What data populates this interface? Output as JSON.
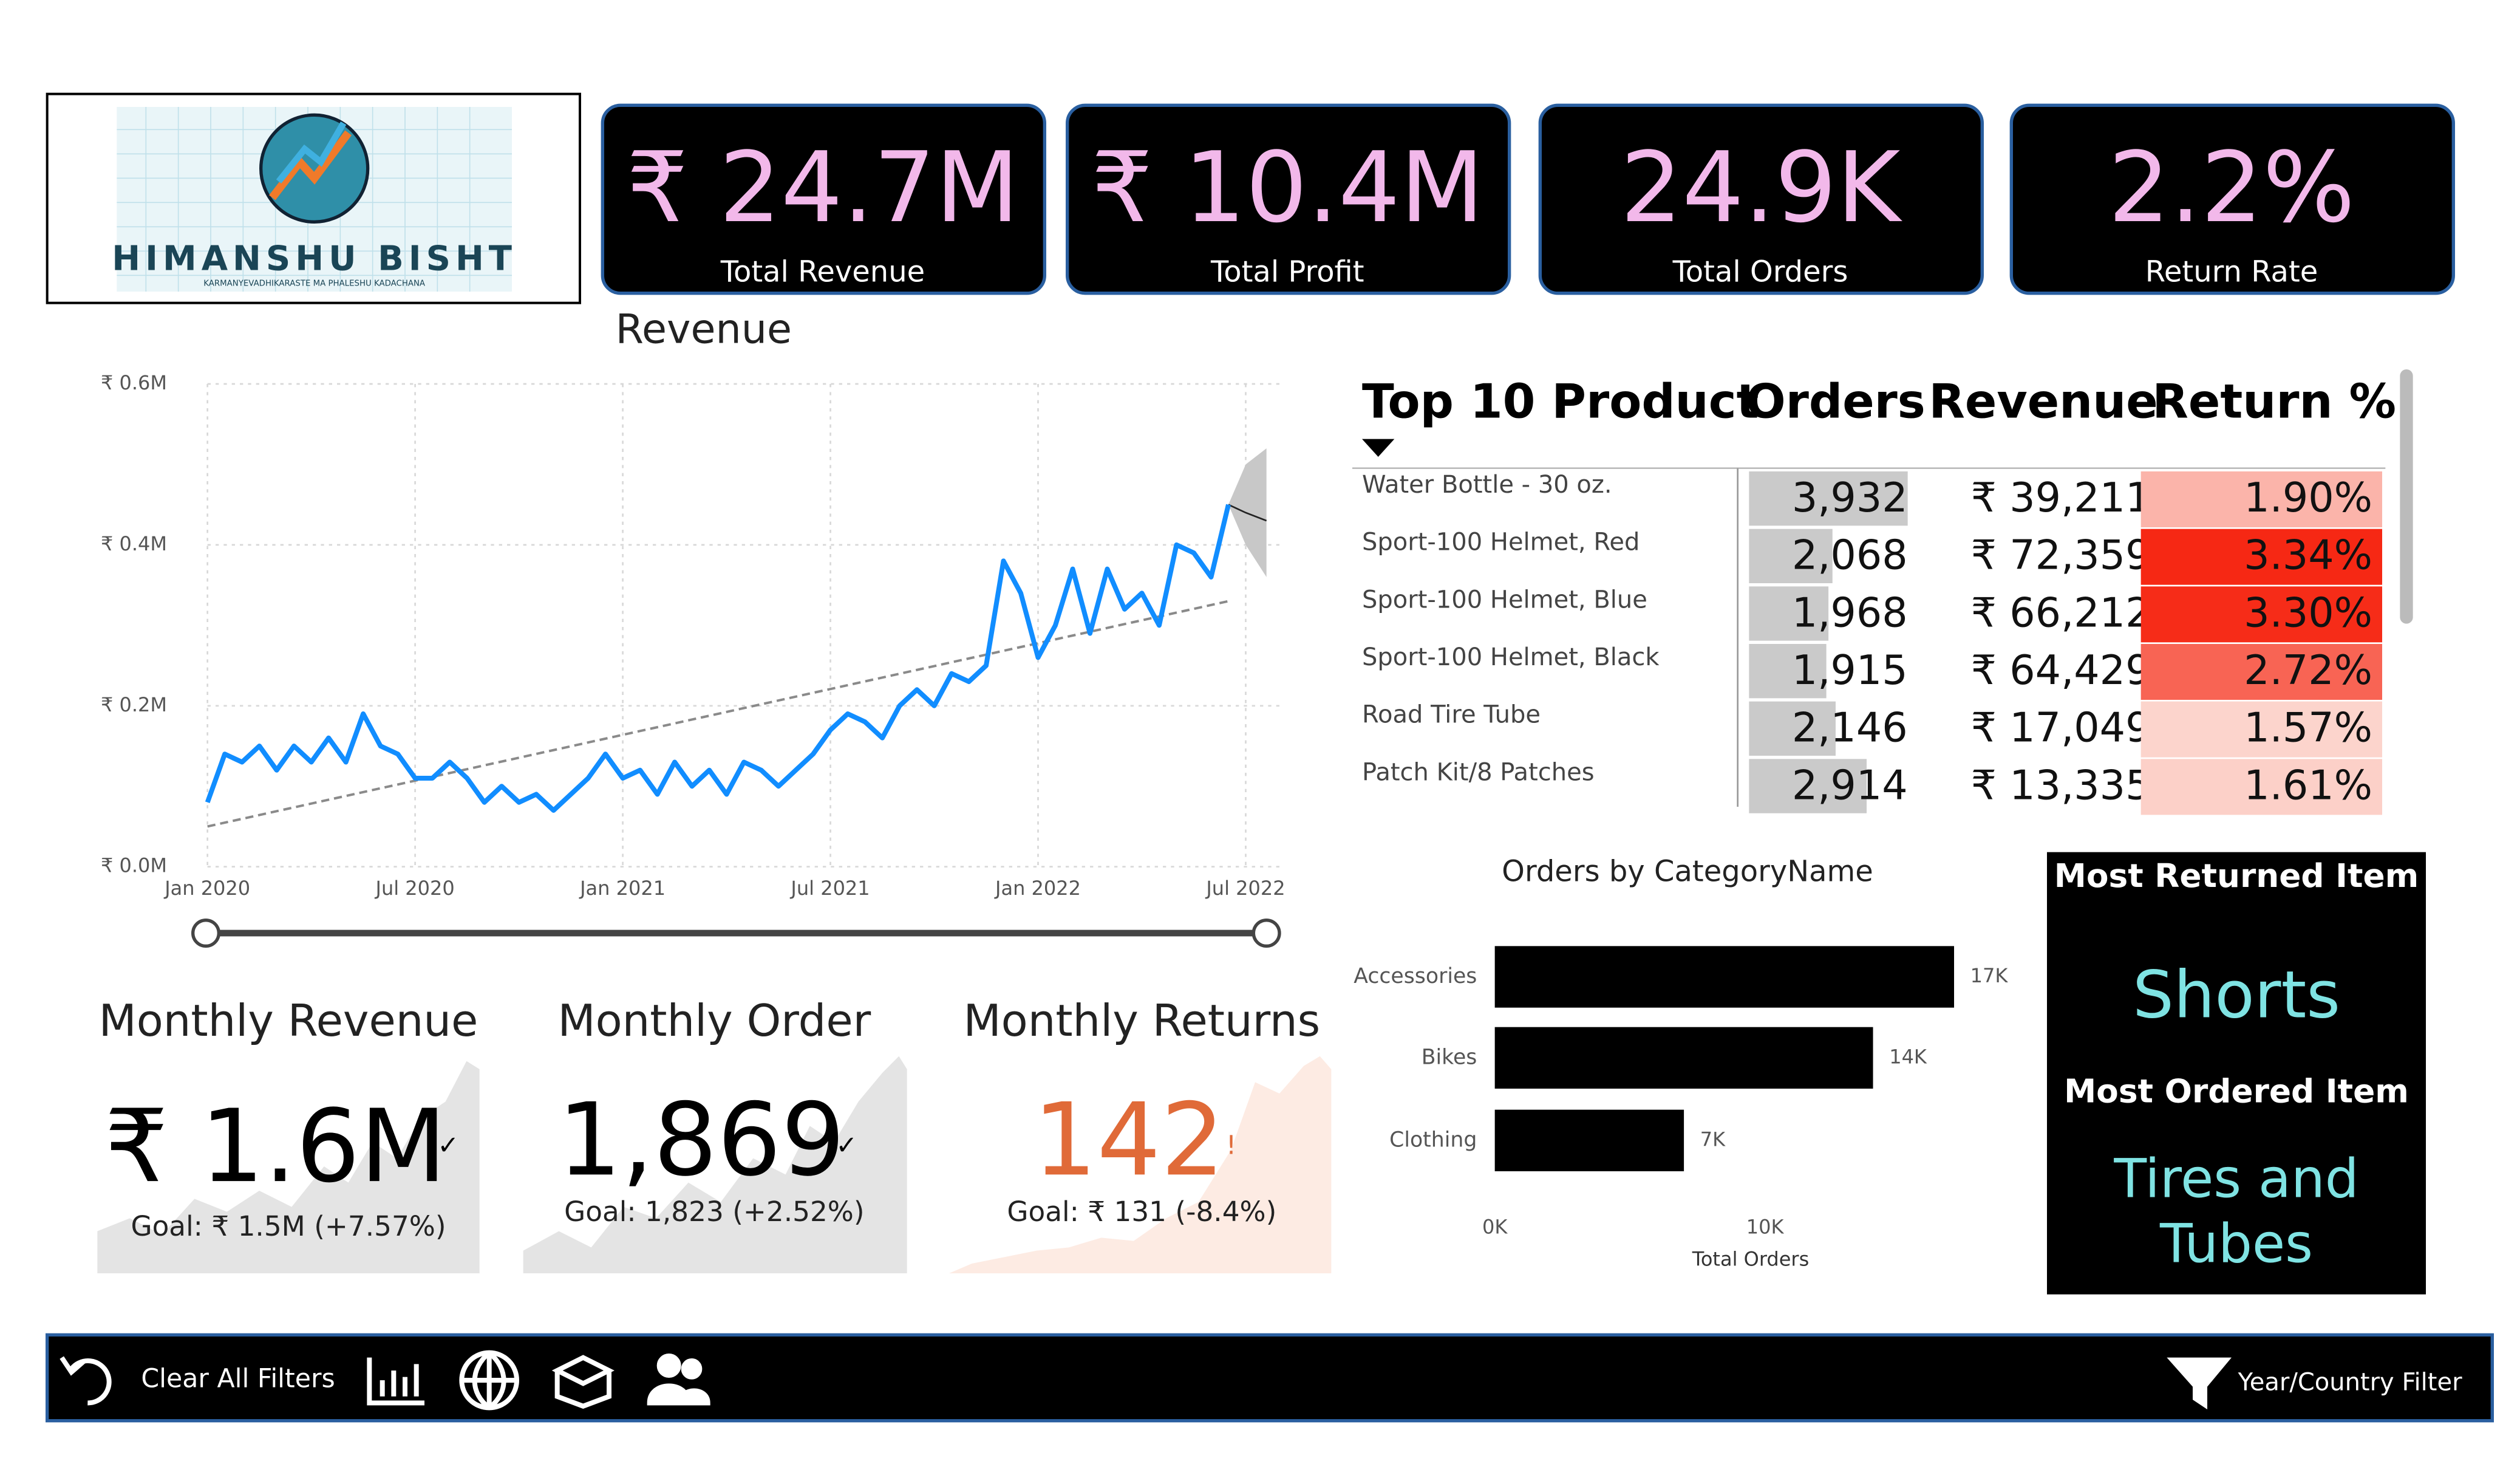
{
  "logo": {
    "name": "HIMANSHU BISHT",
    "tagline": "KARMANYEVADHIKARASTE MA PHALESHU KADACHANA"
  },
  "kpis": [
    {
      "value": "₹ 24.7M",
      "label": "Total Revenue"
    },
    {
      "value": "₹ 10.4M",
      "label": "Total Profit"
    },
    {
      "value": "24.9K",
      "label": "Total Orders"
    },
    {
      "value": "2.2%",
      "label": "Return Rate"
    }
  ],
  "chart_data": [
    {
      "type": "line",
      "title": "Revenue",
      "color": "#118dff",
      "trend_color": "#8a8a8a",
      "grid": true,
      "x": [
        0,
        0.5,
        1,
        1.5,
        2,
        2.5,
        3,
        3.5,
        4,
        4.5,
        5,
        5.5,
        6,
        6.5,
        7,
        7.5,
        8,
        8.5,
        9,
        9.5,
        10,
        10.5,
        11,
        11.5,
        12,
        12.5,
        13,
        13.5,
        14,
        14.5,
        15,
        15.5,
        16,
        16.5,
        17,
        17.5,
        18,
        18.5,
        19,
        19.5,
        20,
        20.5,
        21,
        21.5,
        22,
        22.5,
        23,
        23.5,
        24,
        24.5,
        25,
        25.5,
        26,
        26.5,
        27,
        27.5,
        28,
        28.5,
        29,
        29.5
      ],
      "values": [
        0.08,
        0.14,
        0.13,
        0.15,
        0.12,
        0.15,
        0.13,
        0.16,
        0.13,
        0.19,
        0.15,
        0.14,
        0.11,
        0.11,
        0.13,
        0.11,
        0.08,
        0.1,
        0.08,
        0.09,
        0.07,
        0.09,
        0.11,
        0.14,
        0.11,
        0.12,
        0.09,
        0.13,
        0.1,
        0.12,
        0.09,
        0.13,
        0.12,
        0.1,
        0.12,
        0.14,
        0.17,
        0.19,
        0.18,
        0.16,
        0.2,
        0.22,
        0.2,
        0.24,
        0.23,
        0.25,
        0.38,
        0.34,
        0.26,
        0.3,
        0.37,
        0.29,
        0.37,
        0.32,
        0.34,
        0.3,
        0.4,
        0.39,
        0.36,
        0.45
      ],
      "trend_x": [
        0,
        29.5
      ],
      "trend": [
        0.05,
        0.33
      ],
      "forecast_x": [
        29.5,
        30,
        30.6
      ],
      "forecast": [
        0.45,
        0.44,
        0.43
      ],
      "forecast_upper": [
        0.45,
        0.5,
        0.52
      ],
      "forecast_lower": [
        0.45,
        0.4,
        0.36
      ],
      "xlim": [
        0,
        30.6
      ],
      "xticks": [
        {
          "value": 0,
          "label": "Jan 2020"
        },
        {
          "value": 6,
          "label": "Jul 2020"
        },
        {
          "value": 12,
          "label": "Jan 2021"
        },
        {
          "value": 18,
          "label": "Jul 2021"
        },
        {
          "value": 24,
          "label": "Jan 2022"
        },
        {
          "value": 30,
          "label": "Jul 2022"
        }
      ],
      "ylim": [
        0,
        0.6
      ],
      "yticks": [
        {
          "value": 0,
          "label": "₹ 0.0M"
        },
        {
          "value": 0.2,
          "label": "₹ 0.2M"
        },
        {
          "value": 0.4,
          "label": "₹ 0.4M"
        },
        {
          "value": 0.6,
          "label": "₹ 0.6M"
        }
      ]
    },
    {
      "type": "bar",
      "title": "Orders by CategoryName",
      "x_label": "Total Orders",
      "color": "#000000",
      "categories": [
        "Accessories",
        "Bikes",
        "Clothing"
      ],
      "values": [
        17,
        14,
        7
      ],
      "value_labels": [
        "17K",
        "14K",
        "7K"
      ],
      "xlim": [
        0,
        19
      ],
      "xticks": [
        {
          "value": 0,
          "label": "0K"
        },
        {
          "value": 10,
          "label": "10K"
        }
      ]
    }
  ],
  "table": {
    "columns": [
      "Top 10 Product",
      "Orders",
      "Revenue",
      "Return %"
    ],
    "rows": [
      {
        "product": "Water Bottle - 30 oz.",
        "orders": 3932,
        "orders_label": "3,932",
        "revenue": "₹ 39,211",
        "return": 1.9,
        "return_label": "1.90%"
      },
      {
        "product": "Sport-100 Helmet, Red",
        "orders": 2068,
        "orders_label": "2,068",
        "revenue": "₹ 72,359",
        "return": 3.34,
        "return_label": "3.34%"
      },
      {
        "product": "Sport-100 Helmet, Blue",
        "orders": 1968,
        "orders_label": "1,968",
        "revenue": "₹ 66,212",
        "return": 3.3,
        "return_label": "3.30%"
      },
      {
        "product": "Sport-100 Helmet, Black",
        "orders": 1915,
        "orders_label": "1,915",
        "revenue": "₹ 64,429",
        "return": 2.72,
        "return_label": "2.72%"
      },
      {
        "product": "Road Tire Tube",
        "orders": 2146,
        "orders_label": "2,146",
        "revenue": "₹ 17,049",
        "return": 1.57,
        "return_label": "1.57%"
      },
      {
        "product": "Patch Kit/8 Patches",
        "orders": 2914,
        "orders_label": "2,914",
        "revenue": "₹ 13,335",
        "return": 1.61,
        "return_label": "1.61%"
      }
    ]
  },
  "monthly": [
    {
      "title": "Monthly Revenue",
      "value": "₹ 1.6M",
      "status": "✓",
      "goal": "Goal: ₹ 1.5M (+7.57%)"
    },
    {
      "title": "Monthly Order",
      "value": "1,869",
      "status": "✓",
      "goal": "Goal: 1,823 (+2.52%)"
    },
    {
      "title": "Monthly Returns",
      "value": "142",
      "status": "!",
      "goal": "Goal: ₹ 131 (-8.4%)"
    }
  ],
  "highlights": {
    "returned_title": "Most Returned Item",
    "returned": "Shorts",
    "ordered_title": "Most Ordered Item",
    "ordered": "Tires and Tubes"
  },
  "footer": {
    "clear": "Clear All Filters",
    "filter": "Year/Country Filter"
  }
}
